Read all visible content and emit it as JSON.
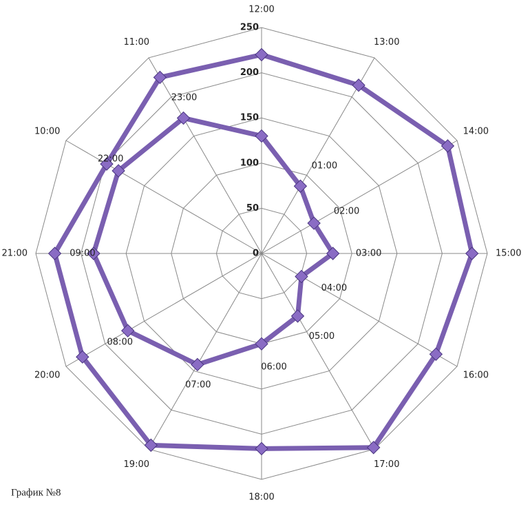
{
  "caption": "График №8",
  "chart_data": {
    "type": "radar",
    "ylim": [
      0,
      250
    ],
    "yticks": [
      0,
      50,
      100,
      150,
      200,
      250
    ],
    "grid": true,
    "series": [
      {
        "color": "#7a5fb0",
        "labels": [
          "12:00",
          "13:00",
          "14:00",
          "15:00",
          "16:00",
          "17:00",
          "18:00",
          "19:00",
          "20:00",
          "21:00",
          "10:00",
          "11:00"
        ],
        "values": [
          220,
          215,
          238,
          233,
          223,
          248,
          216,
          245,
          229,
          229,
          198,
          225
        ]
      },
      {
        "color": "#7a5fb0",
        "labels": [
          null,
          "01:00",
          "02:00",
          "03:00",
          "04:00",
          "05:00",
          "06:00",
          "07:00",
          "08:00",
          "09:00",
          "22:00",
          "23:00"
        ],
        "values": [
          130,
          86,
          67,
          79,
          51,
          80,
          100,
          142,
          171,
          186,
          183,
          173
        ]
      }
    ]
  }
}
